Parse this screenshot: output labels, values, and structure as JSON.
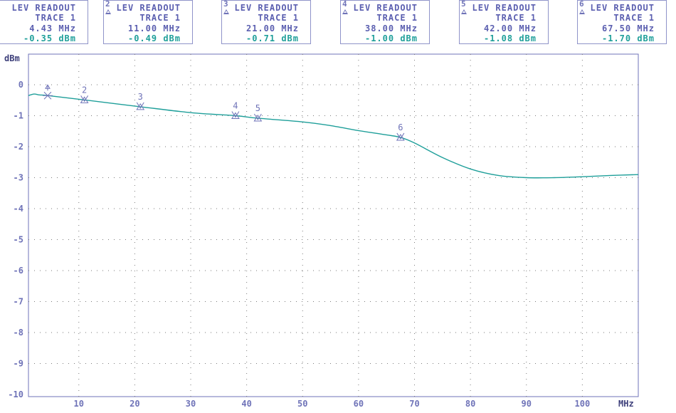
{
  "readouts": [
    {
      "num": "",
      "title": "LEV READOUT",
      "trace": "TRACE 1",
      "freq": "4.43 MHz",
      "level": "-0.35 dBm"
    },
    {
      "num": "2",
      "title": "LEV READOUT",
      "trace": "TRACE 1",
      "freq": "11.00 MHz",
      "level": "-0.49 dBm"
    },
    {
      "num": "3",
      "title": "LEV READOUT",
      "trace": "TRACE 1",
      "freq": "21.00 MHz",
      "level": "-0.71 dBm"
    },
    {
      "num": "4",
      "title": "LEV READOUT",
      "trace": "TRACE 1",
      "freq": "38.00 MHz",
      "level": "-1.00 dBm"
    },
    {
      "num": "5",
      "title": "LEV READOUT",
      "trace": "TRACE 1",
      "freq": "42.00 MHz",
      "level": "-1.08 dBm"
    },
    {
      "num": "6",
      "title": "LEV READOUT",
      "trace": "TRACE 1",
      "freq": "67.50 MHz",
      "level": "-1.70 dBm"
    }
  ],
  "chart_data": {
    "type": "line",
    "title": "",
    "ylabel": "dBm",
    "xlabel": "MHz",
    "xlim": [
      1,
      110
    ],
    "ylim": [
      -10,
      0
    ],
    "grid": true,
    "x_ticks": [
      10,
      20,
      30,
      40,
      50,
      60,
      70,
      80,
      90,
      100
    ],
    "y_ticks": [
      0,
      -1,
      -2,
      -3,
      -4,
      -5,
      -6,
      -7,
      -8,
      -9,
      -10
    ],
    "colors": {
      "trace": "#1f9f9a",
      "axis": "#6f73b8",
      "grid": "#7a7a7a"
    },
    "series": [
      {
        "name": "",
        "x": [
          1,
          2,
          3,
          4.43,
          11,
          21,
          30,
          38,
          42,
          50,
          55,
          60,
          65,
          67.5,
          70,
          75,
          80,
          85,
          90,
          95,
          100,
          105,
          110
        ],
        "y": [
          -0.35,
          -0.3,
          -0.33,
          -0.35,
          -0.49,
          -0.71,
          -0.9,
          -1.0,
          -1.08,
          -1.2,
          -1.32,
          -1.48,
          -1.62,
          -1.7,
          -1.88,
          -2.35,
          -2.72,
          -2.93,
          -3.0,
          -3.0,
          -2.97,
          -2.93,
          -2.9
        ]
      }
    ],
    "markers": [
      {
        "label": "1",
        "x": 4.43,
        "y": -0.35
      },
      {
        "label": "2",
        "x": 11,
        "y": -0.49
      },
      {
        "label": "3",
        "x": 21,
        "y": -0.71
      },
      {
        "label": "4",
        "x": 38,
        "y": -1.0
      },
      {
        "label": "5",
        "x": 42,
        "y": -1.08
      },
      {
        "label": "6",
        "x": 67.5,
        "y": -1.7
      }
    ]
  }
}
